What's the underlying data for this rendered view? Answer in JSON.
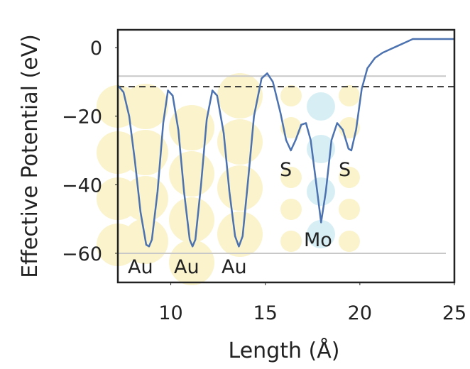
{
  "chart_data": {
    "type": "line",
    "x_label": "Length (Å)",
    "y_label": "Effective Potential (eV)",
    "xlim": [
      7.2,
      25
    ],
    "ylim": [
      -68.5,
      5.2
    ],
    "xticks": [
      10,
      15,
      20,
      25
    ],
    "yticks": [
      0,
      {
        "value": -20,
        "label": "−20"
      },
      {
        "value": -40,
        "label": "−40"
      },
      {
        "value": -60,
        "label": "−60"
      }
    ],
    "grid": false,
    "hlines": [
      {
        "value": -8.3,
        "color": "#c8c8c8",
        "dashed": false
      },
      {
        "value": -60,
        "color": "#c8c8c8",
        "dashed": false
      },
      {
        "value": -11.4,
        "color": "#333333",
        "dashed": true
      }
    ],
    "annotations": [
      "Au",
      "Au",
      "Au",
      "S",
      "S",
      "Mo"
    ],
    "series": [
      {
        "color": "#4c72b0",
        "x": [
          7.2,
          7.5,
          7.8,
          8.1,
          8.4,
          8.7,
          8.85,
          9.0,
          9.3,
          9.6,
          9.85,
          10.1,
          10.4,
          10.7,
          11.0,
          11.15,
          11.3,
          11.6,
          11.9,
          12.2,
          12.45,
          12.8,
          13.1,
          13.4,
          13.6,
          13.8,
          14.1,
          14.4,
          14.8,
          15.1,
          15.4,
          15.8,
          16.1,
          16.35,
          16.6,
          16.9,
          17.15,
          17.4,
          17.7,
          17.95,
          18.2,
          18.5,
          18.8,
          19.1,
          19.4,
          19.55,
          19.8,
          20.1,
          20.4,
          20.8,
          21.2,
          21.6,
          22.0,
          22.4,
          22.8,
          23.2,
          25
        ],
        "values": [
          -11,
          -13,
          -20,
          -33,
          -48,
          -57.5,
          -58,
          -56,
          -42,
          -22,
          -12.5,
          -14,
          -24,
          -42,
          -56,
          -58,
          -56,
          -40,
          -21,
          -12.5,
          -14,
          -25,
          -42,
          -55,
          -58,
          -55,
          -38,
          -20,
          -9,
          -7.5,
          -10,
          -19,
          -27,
          -30,
          -27,
          -22.5,
          -22,
          -27,
          -40,
          -51,
          -42,
          -27,
          -22,
          -24,
          -29.5,
          -30,
          -24,
          -12,
          -6,
          -3,
          -1.5,
          -0.5,
          0.5,
          1.5,
          2.5,
          2.5,
          2.5
        ]
      }
    ]
  }
}
